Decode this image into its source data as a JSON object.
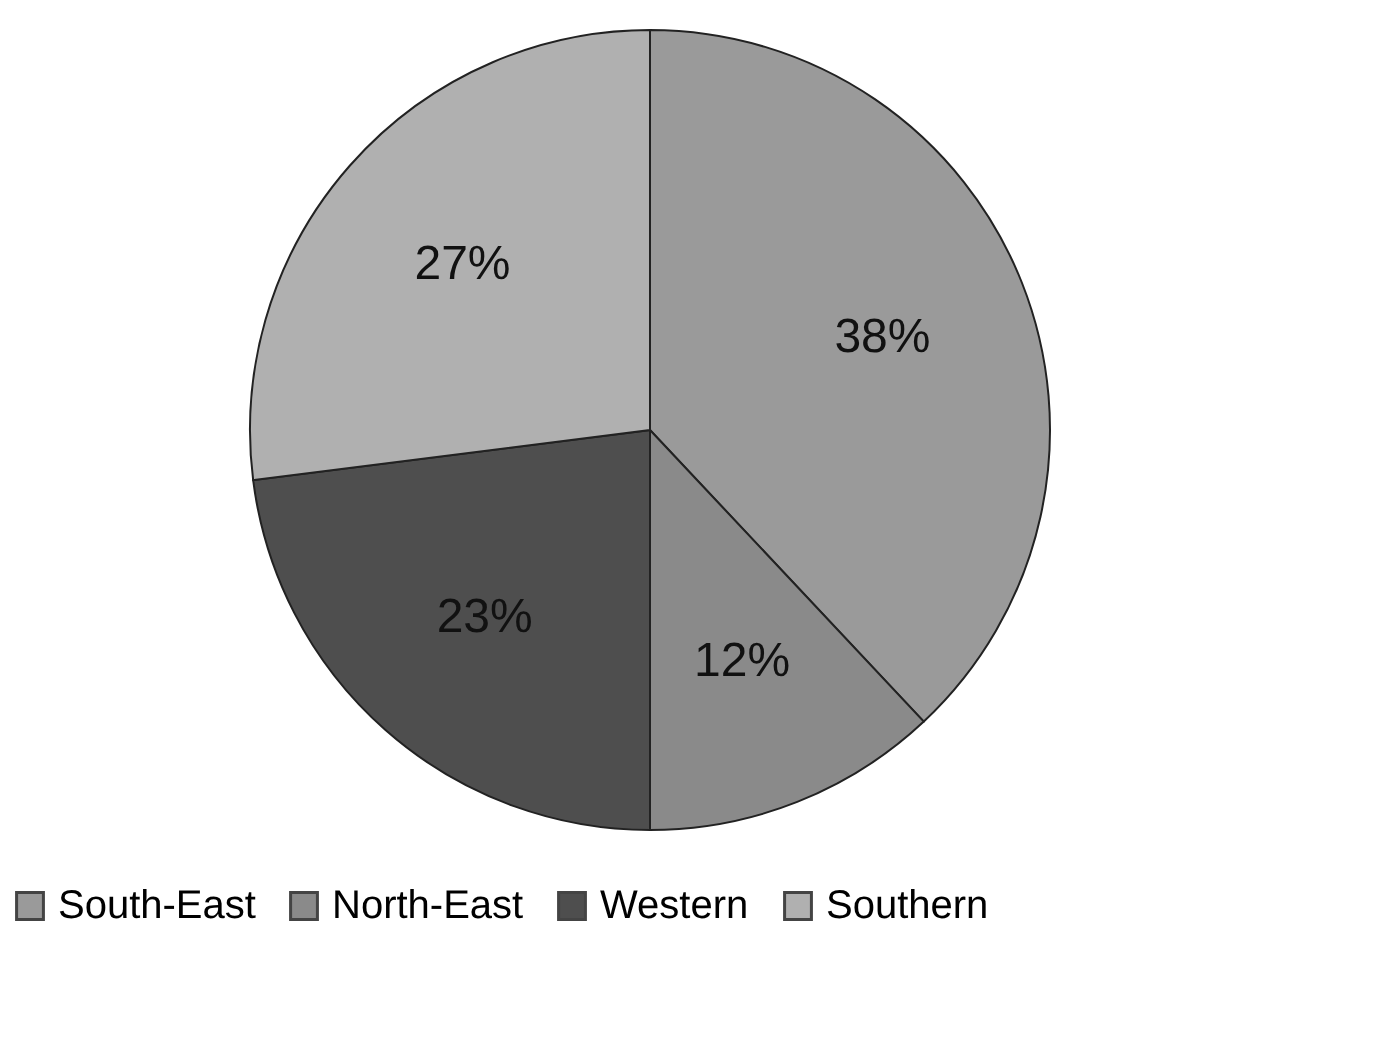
{
  "chart_data": {
    "type": "pie",
    "categories": [
      "South-East",
      "North-East",
      "Western",
      "Southern"
    ],
    "values": [
      38,
      12,
      23,
      27
    ],
    "colors": [
      "#9a9a9a",
      "#8a8a8a",
      "#4e4e4e",
      "#b0b0b0"
    ],
    "value_labels": [
      "38%",
      "12%",
      "23%",
      "27%"
    ],
    "legend": "bottom"
  }
}
